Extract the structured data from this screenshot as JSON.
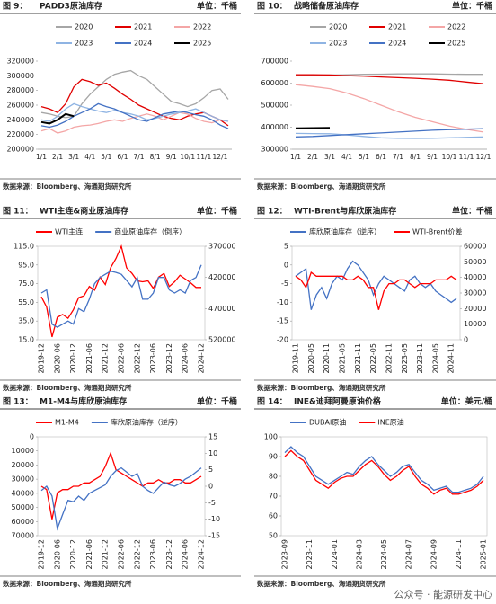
{
  "chart_data": [
    {
      "type": "line",
      "figure": "图 9：",
      "title": "PADD3原油库存",
      "unit": "单位：千桶",
      "source": "数据来源：Bloomberg、海通期货研究所",
      "categories": [
        "1/1",
        null,
        "2/1",
        null,
        "3/1",
        null,
        "4/1",
        null,
        "5/1",
        null,
        "6/1",
        null,
        "7/1",
        null,
        "8/1",
        null,
        "9/1",
        null,
        "10/1",
        null,
        "11/1",
        null,
        "12/1",
        null
      ],
      "ylim": [
        200000,
        320000
      ],
      "yticks": [
        200000,
        220000,
        240000,
        260000,
        280000,
        300000,
        320000
      ],
      "series": [
        {
          "name": "2020",
          "color": "#a6a6a6",
          "values": [
            250000,
            248000,
            245000,
            243000,
            245000,
            262000,
            275000,
            285000,
            295000,
            302000,
            305000,
            307000,
            300000,
            295000,
            285000,
            275000,
            265000,
            262000,
            258000,
            262000,
            270000,
            280000,
            282000,
            268000
          ]
        },
        {
          "name": "2021",
          "color": "#e00000",
          "values": [
            258000,
            255000,
            250000,
            262000,
            285000,
            295000,
            292000,
            287000,
            290000,
            283000,
            275000,
            268000,
            260000,
            255000,
            250000,
            245000,
            242000,
            240000,
            245000,
            248000,
            250000,
            245000,
            240000,
            232000
          ]
        },
        {
          "name": "2022",
          "color": "#f4a6a6",
          "values": [
            225000,
            228000,
            222000,
            225000,
            230000,
            232000,
            233000,
            235000,
            238000,
            240000,
            238000,
            242000,
            245000,
            248000,
            245000,
            240000,
            245000,
            250000,
            248000,
            242000,
            238000,
            236000,
            240000,
            238000
          ]
        },
        {
          "name": "2023",
          "color": "#8fb4e3",
          "values": [
            240000,
            238000,
            245000,
            255000,
            262000,
            258000,
            255000,
            252000,
            250000,
            253000,
            250000,
            248000,
            245000,
            240000,
            242000,
            245000,
            248000,
            250000,
            252000,
            255000,
            250000,
            245000,
            240000,
            238000
          ]
        },
        {
          "name": "2024",
          "color": "#4472c4",
          "values": [
            232000,
            230000,
            233000,
            238000,
            245000,
            250000,
            255000,
            262000,
            258000,
            255000,
            250000,
            245000,
            240000,
            238000,
            243000,
            248000,
            250000,
            252000,
            250000,
            247000,
            245000,
            240000,
            233000,
            228000
          ]
        },
        {
          "name": "2025",
          "color": "#000000",
          "values": [
            237000,
            235000,
            240000,
            248000,
            245000,
            null,
            null,
            null,
            null,
            null,
            null,
            null,
            null,
            null,
            null,
            null,
            null,
            null,
            null,
            null,
            null,
            null,
            null,
            null
          ]
        }
      ]
    },
    {
      "type": "line",
      "figure": "图 10：",
      "title": "战略储备原油库存",
      "unit": "单位：千桶",
      "source": "数据来源：Bloomberg、海通期货研究所",
      "categories": [
        "1/1",
        "2/1",
        "3/1",
        "4/1",
        "5/1",
        "6/1",
        "7/1",
        "8/1",
        "9/1",
        "10/1",
        "11/1",
        "12/1"
      ],
      "ylim": [
        300000,
        700000
      ],
      "yticks": [
        300000,
        400000,
        500000,
        600000,
        700000
      ],
      "series": [
        {
          "name": "2020",
          "color": "#a6a6a6",
          "values": [
            635000,
            636000,
            637000,
            638000,
            640000,
            641000,
            642000,
            642000,
            642000,
            641000,
            640000,
            640000
          ]
        },
        {
          "name": "2021",
          "color": "#e00000",
          "values": [
            638000,
            638000,
            637000,
            634000,
            632000,
            628000,
            625000,
            622000,
            618000,
            613000,
            605000,
            597000
          ]
        },
        {
          "name": "2022",
          "color": "#f4a6a6",
          "values": [
            593000,
            585000,
            575000,
            555000,
            530000,
            500000,
            470000,
            445000,
            425000,
            405000,
            390000,
            378000
          ]
        },
        {
          "name": "2023",
          "color": "#8fb4e3",
          "values": [
            372000,
            371000,
            370000,
            365000,
            358000,
            352000,
            350000,
            349000,
            350000,
            352000,
            354000,
            356000
          ]
        },
        {
          "name": "2024",
          "color": "#4472c4",
          "values": [
            356000,
            358000,
            362000,
            366000,
            370000,
            374000,
            378000,
            382000,
            386000,
            389000,
            391000,
            393000
          ]
        },
        {
          "name": "2025",
          "color": "#000000",
          "values": [
            395000,
            396000,
            397000,
            null,
            null,
            null,
            null,
            null,
            null,
            null,
            null,
            null
          ]
        }
      ]
    },
    {
      "type": "line",
      "figure": "图 11：",
      "title": "WTI主连&商业原油库存",
      "unit": "单位：千桶",
      "source": "数据来源：Bloomberg、海通期货研究所",
      "categories": [
        "2019-12",
        null,
        null,
        "2020-06",
        null,
        null,
        "2020-12",
        null,
        null,
        "2021-06",
        null,
        null,
        "2021-12",
        null,
        null,
        "2022-06",
        null,
        null,
        "2022-12",
        null,
        null,
        "2023-06",
        null,
        null,
        "2023-12",
        null,
        null,
        "2024-06",
        null,
        null,
        "2024-12"
      ],
      "ylim": [
        15,
        115
      ],
      "yticks": [
        {
          "value": 15,
          "label": "15.0"
        },
        {
          "value": 35,
          "label": "35.0"
        },
        {
          "value": 55,
          "label": "55.0"
        },
        {
          "value": 75,
          "label": "75.0"
        },
        {
          "value": 95,
          "label": "95.0"
        },
        {
          "value": 115,
          "label": "115.0"
        }
      ],
      "y2lim": [
        520000,
        370000
      ],
      "y2ticks": [
        370000,
        420000,
        470000,
        520000
      ],
      "series": [
        {
          "name": "WTI主连",
          "color": "#ff0000",
          "values": [
            61,
            50,
            18,
            39,
            42,
            38,
            47,
            60,
            62,
            72,
            68,
            82,
            74,
            92,
            102,
            115,
            92,
            86,
            78,
            77,
            78,
            70,
            82,
            86,
            72,
            77,
            84,
            80,
            76,
            71,
            71
          ]
        },
        {
          "name": "商业原油库存（倒序）",
          "color": "#4472c4",
          "axis": "y2",
          "values": [
            445000,
            440000,
            495000,
            500000,
            495000,
            490000,
            495000,
            470000,
            475000,
            455000,
            430000,
            420000,
            415000,
            410000,
            412000,
            415000,
            425000,
            435000,
            420000,
            455000,
            455000,
            445000,
            420000,
            420000,
            440000,
            445000,
            440000,
            445000,
            425000,
            420000,
            400000
          ]
        }
      ]
    },
    {
      "type": "line",
      "figure": "图 12：",
      "title": "WTI-Brent与库欣原油库存",
      "unit": "单位：千桶",
      "source": "数据来源：Bloomberg、海通期货研究所",
      "categories": [
        "2019-11",
        null,
        null,
        "2020-05",
        null,
        null,
        "2020-11",
        null,
        null,
        "2021-05",
        null,
        null,
        "2021-11",
        null,
        null,
        "2022-05",
        null,
        null,
        "2022-11",
        null,
        null,
        "2023-05",
        null,
        null,
        "2023-11",
        null,
        null,
        "2024-05",
        null,
        null,
        "2024-11",
        null
      ],
      "ylim": [
        -20,
        5
      ],
      "yticks": [
        -20,
        -15,
        -10,
        -5,
        0,
        5
      ],
      "y2lim": [
        0,
        60000
      ],
      "y2ticks": [
        0,
        10000,
        20000,
        30000,
        40000,
        50000,
        60000
      ],
      "series": [
        {
          "name": "库欣原油库存（逆序）",
          "color": "#4472c4",
          "axis": "y2",
          "values": [
            40800,
            43200,
            45600,
            19200,
            28800,
            33600,
            26400,
            36000,
            40800,
            38400,
            45600,
            50400,
            48000,
            43200,
            38400,
            28800,
            36000,
            40800,
            38400,
            36000,
            33600,
            31200,
            38400,
            40800,
            36000,
            33600,
            36000,
            31200,
            28800,
            26400,
            24000,
            26400
          ]
        },
        {
          "name": "WTI-Brent价差",
          "color": "#ff0000",
          "values": [
            -3,
            -4,
            -6,
            -2,
            -3,
            -3,
            -3,
            -3,
            -3,
            -3,
            -4,
            -4,
            -3,
            -4,
            -6,
            -6,
            -12,
            -7,
            -5,
            -5,
            -4,
            -4,
            -5,
            -6,
            -5,
            -5,
            -5,
            -4,
            -4,
            -4,
            -3,
            -4
          ]
        }
      ]
    },
    {
      "type": "line",
      "figure": "图 13：",
      "title": "M1-M4与库欣原油库存",
      "unit": "单位：千桶",
      "source": "数据来源：Bloomberg、海通期货研究所",
      "categories": [
        "2019-12",
        null,
        null,
        "2020-06",
        null,
        null,
        "2020-12",
        null,
        null,
        "2021-06",
        null,
        null,
        "2021-12",
        null,
        null,
        "2022-06",
        null,
        null,
        "2022-12",
        null,
        null,
        "2023-06",
        null,
        null,
        "2023-12",
        null,
        null,
        "2024-06",
        null,
        null,
        "2024-12"
      ],
      "ylim": [
        70000,
        0
      ],
      "yticks": [
        0,
        10000,
        20000,
        30000,
        40000,
        50000,
        60000,
        70000
      ],
      "y2lim": [
        -15,
        15
      ],
      "y2ticks": [
        -15,
        -10,
        -5,
        0,
        5,
        10,
        15
      ],
      "series": [
        {
          "name": "M1-M4",
          "color": "#ff0000",
          "axis": "y2",
          "values": [
            0,
            -1,
            -10,
            -2,
            -1,
            -1,
            0,
            0,
            1,
            1,
            2,
            3,
            6,
            10,
            5,
            4,
            3,
            2,
            1,
            0,
            1,
            1,
            2,
            1,
            1,
            2,
            2,
            1,
            1,
            2,
            3
          ]
        },
        {
          "name": "库欣原油库存（逆序）",
          "color": "#4472c4",
          "values": [
            38000,
            35000,
            42000,
            65000,
            55000,
            45000,
            46000,
            42000,
            45000,
            40000,
            38000,
            36000,
            34000,
            28000,
            24000,
            22000,
            25000,
            28000,
            26000,
            35000,
            38000,
            40000,
            36000,
            32000,
            34000,
            35000,
            33000,
            30000,
            28000,
            25000,
            22000
          ]
        }
      ]
    },
    {
      "type": "line",
      "figure": "图 14：",
      "title": "INE&迪拜阿曼原油价格",
      "unit": "单位：美元/桶",
      "source": "数据来源：Bloomberg、海通期货研究所",
      "categories": [
        "2023-09",
        null,
        null,
        null,
        "2023-11",
        null,
        null,
        null,
        "2024-01",
        null,
        null,
        null,
        "2024-03",
        null,
        null,
        null,
        "2024-05",
        null,
        null,
        null,
        "2024-07",
        null,
        null,
        null,
        "2024-09",
        null,
        null,
        null,
        "2024-11",
        null,
        null,
        null,
        "2025-01"
      ],
      "ylim": [
        50,
        100
      ],
      "yticks": [
        50,
        60,
        70,
        80,
        90,
        100
      ],
      "series": [
        {
          "name": "DUBAI原油",
          "color": "#4472c4",
          "values": [
            92,
            95,
            92,
            90,
            85,
            80,
            78,
            76,
            78,
            80,
            82,
            81,
            85,
            88,
            90,
            86,
            83,
            80,
            82,
            85,
            86,
            82,
            78,
            76,
            73,
            74,
            75,
            72,
            72,
            73,
            74,
            76,
            80
          ]
        },
        {
          "name": "INE原油",
          "color": "#ff0000",
          "values": [
            90,
            93,
            90,
            88,
            83,
            78,
            76,
            74,
            77,
            79,
            80,
            80,
            83,
            86,
            88,
            85,
            81,
            78,
            80,
            83,
            85,
            80,
            76,
            74,
            71,
            73,
            74,
            71,
            71,
            72,
            73,
            75,
            78
          ]
        }
      ]
    }
  ],
  "watermark": "公众号 · 能源研发中心"
}
